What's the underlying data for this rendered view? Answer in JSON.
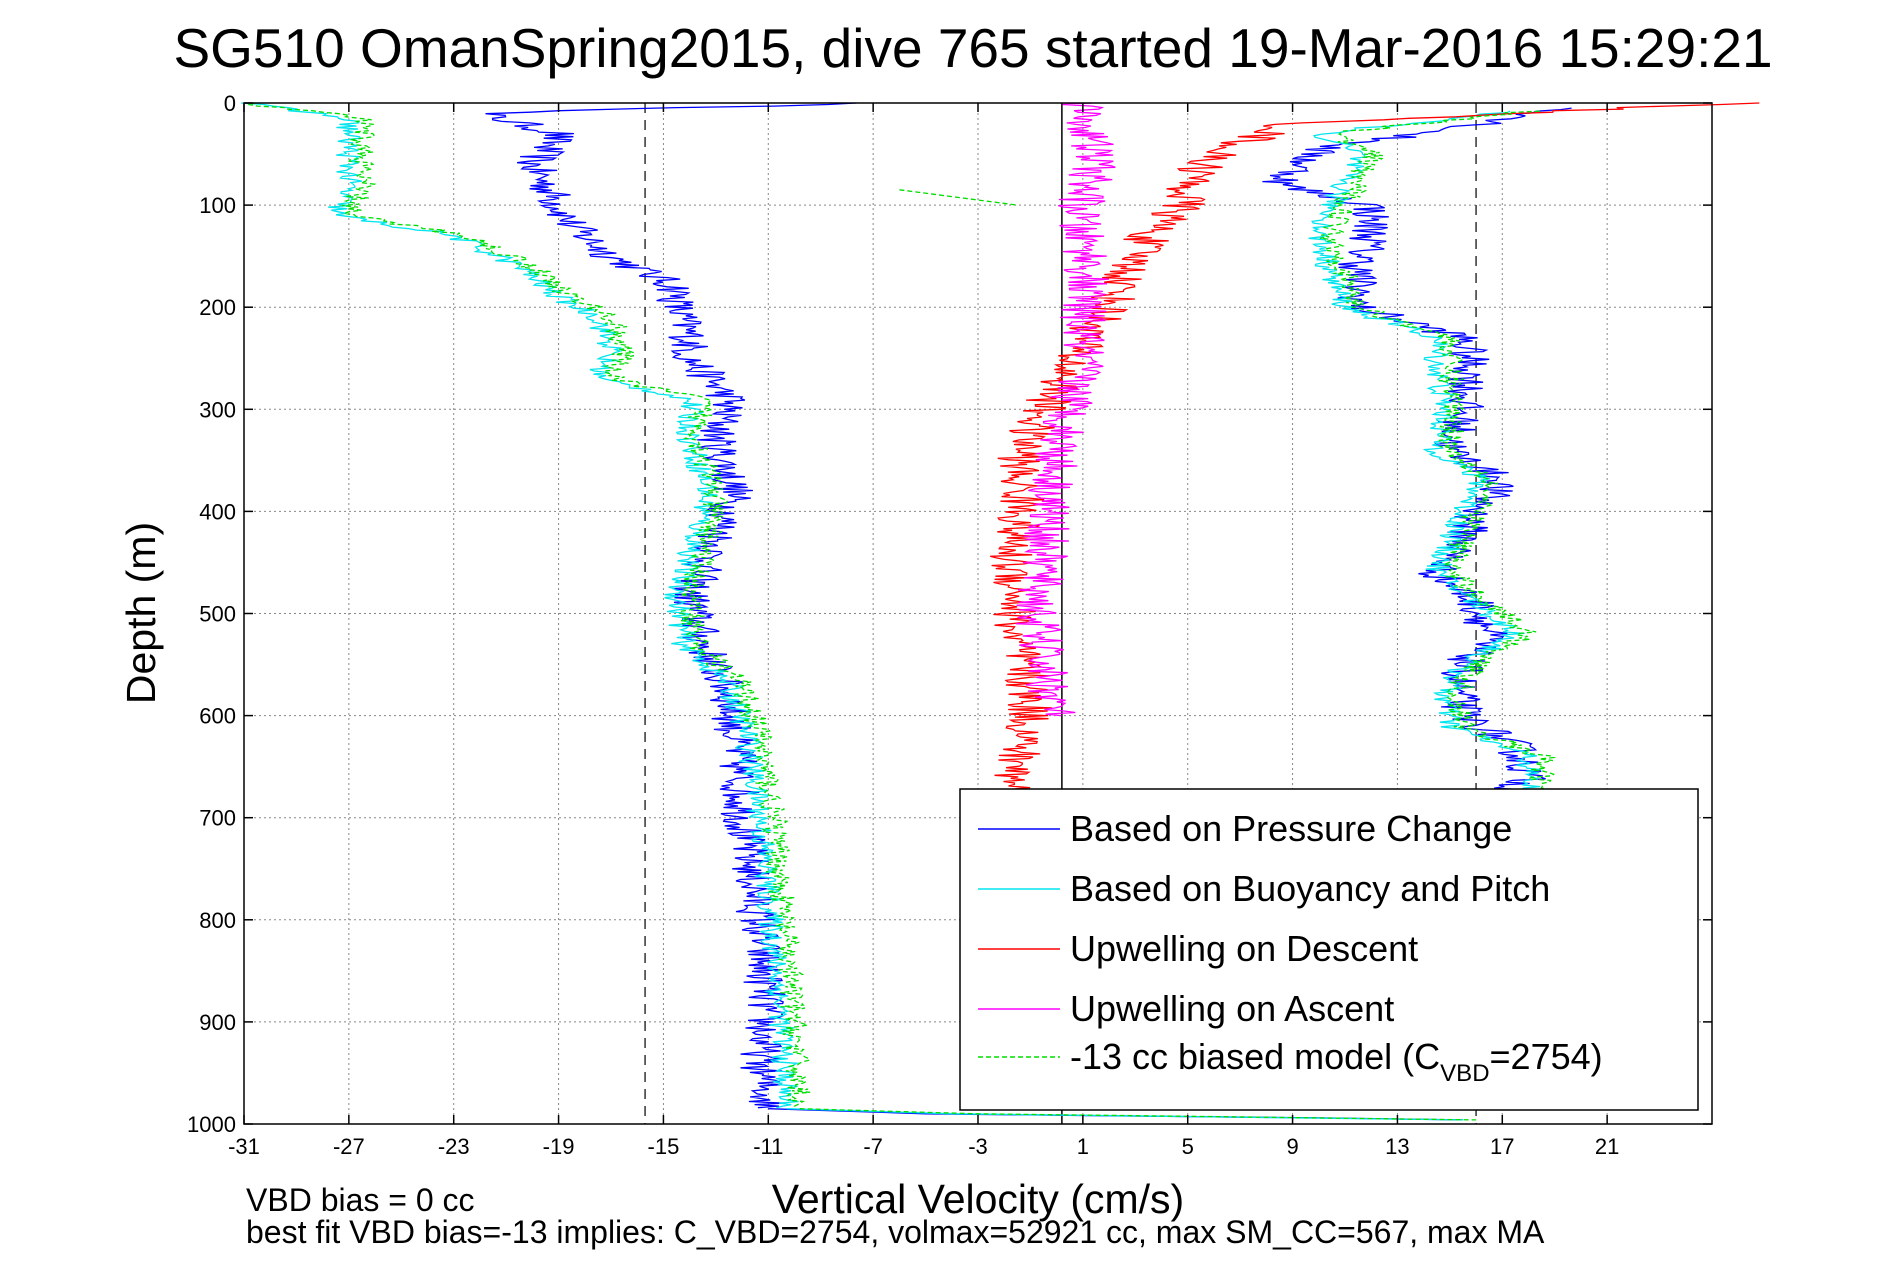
{
  "chart_data": {
    "type": "line",
    "title": "SG510 OmanSpring2015, dive 765 started 19-Mar-2016 15:29:21",
    "xlabel": "Vertical Velocity (cm/s)",
    "ylabel": "Depth (m)",
    "xlim": [
      -31,
      25
    ],
    "ylim": [
      1000,
      0
    ],
    "y_reversed": true,
    "grid": true,
    "grid_style": "dotted",
    "legend_position": "lower-right",
    "x_ticks": [
      "-31",
      "-27",
      "-23",
      "-19",
      "-15",
      "-11",
      "-7",
      "-3",
      "1",
      "5",
      "9",
      "13",
      "17",
      "21"
    ],
    "y_ticks": [
      "0",
      "100",
      "200",
      "300",
      "400",
      "500",
      "600",
      "700",
      "800",
      "900",
      "1000"
    ],
    "reference_lines": [
      {
        "x": -15.7,
        "style": "dashed",
        "color": "#333333"
      },
      {
        "x": 0.2,
        "style": "solid",
        "color": "#000000"
      },
      {
        "x": 16.0,
        "style": "dashed",
        "color": "#333333"
      }
    ],
    "series": [
      {
        "name": "Based on Pressure Change",
        "color": "#0000ff",
        "segments": [
          {
            "depth": [
              0,
              10,
              30,
              60,
              80,
              100,
              120,
              150,
              180,
              200,
              230,
              250,
              290,
              330,
              380,
              430,
              480,
              530,
              580,
              640,
              700,
              760,
              820,
              880,
              940,
              985
            ],
            "velocity": [
              -7,
              -22,
              -19,
              -20,
              -19.5,
              -19,
              -18.5,
              -17,
              -14.5,
              -14.5,
              -14,
              -14,
              -12.5,
              -13,
              -12.3,
              -13,
              -14,
              -13.5,
              -12.5,
              -12.2,
              -12,
              -11.6,
              -11.3,
              -11.1,
              -11.3,
              -11.0
            ],
            "noise": 0.8
          },
          {
            "depth": [
              985,
              990,
              992,
              994,
              996
            ],
            "velocity": [
              -11.0,
              -5,
              2,
              10,
              15.5
            ],
            "noise": 0
          },
          {
            "depth": [
              5,
              20,
              45,
              80,
              100,
              130,
              160,
              200,
              230,
              260,
              300,
              340,
              370,
              400,
              430,
              460,
              490,
              520,
              550,
              575,
              600,
              630,
              660,
              680
            ],
            "velocity": [
              19.5,
              16.5,
              10,
              8.5,
              12,
              12,
              11.5,
              11.5,
              15.5,
              15.8,
              15.5,
              15,
              17,
              16,
              15.5,
              14.5,
              16,
              16.5,
              15.5,
              15.3,
              15.5,
              17.5,
              18,
              17
            ],
            "noise": 0.8
          }
        ]
      },
      {
        "name": "Based on Buoyancy and Pitch",
        "color": "#00e5ee",
        "segments": [
          {
            "depth": [
              0,
              15,
              50,
              80,
              110,
              130,
              160,
              190,
              210,
              240,
              270,
              290,
              330,
              380,
              430,
              480,
              530,
              570,
              620,
              700,
              800,
              900,
              985
            ],
            "velocity": [
              -31,
              -27,
              -27,
              -27,
              -27.5,
              -23,
              -20.5,
              -19,
              -17.5,
              -17,
              -17.5,
              -14,
              -14,
              -13.3,
              -13.8,
              -14.5,
              -14.2,
              -12.5,
              -11.8,
              -11.3,
              -10.9,
              -10.5,
              -10.3
            ],
            "noise": 0.5
          },
          {
            "depth": [
              985,
              990,
              993,
              996
            ],
            "velocity": [
              -10.3,
              -4,
              6,
              15.5
            ],
            "noise": 0
          },
          {
            "depth": [
              8,
              30,
              50,
              100,
              130,
              170,
              200,
              230,
              260,
              300,
              340,
              370,
              400,
              430,
              460,
              490,
              520,
              550,
              580,
              610,
              640,
              680
            ],
            "velocity": [
              17.5,
              10,
              11.5,
              10.5,
              10,
              10.5,
              11,
              14.5,
              14.5,
              14.8,
              14.5,
              16.2,
              15.5,
              15,
              14.5,
              16,
              17.5,
              15.5,
              14.8,
              15,
              18,
              18
            ],
            "noise": 0.5
          }
        ]
      },
      {
        "name": "Upwelling on Descent",
        "color": "#ff0000",
        "segments": [
          {
            "depth": [
              0,
              20,
              50,
              80,
              100,
              130,
              160,
              200,
              240,
              280,
              320,
              360,
              400,
              440,
              480,
              520,
              560,
              600,
              640,
              680
            ],
            "velocity": [
              26,
              9,
              6,
              5,
              4.8,
              3.5,
              2.8,
              2,
              0.8,
              0,
              -1,
              -1.5,
              -1.3,
              -1.8,
              -1.5,
              -1.7,
              -1.2,
              -1,
              -1.5,
              -1.7
            ],
            "noise": 0.9
          }
        ]
      },
      {
        "name": "Upwelling on Ascent",
        "color": "#ff00ff",
        "segments": [
          {
            "depth": [
              0,
              30,
              60,
              90,
              120,
              150,
              200,
              250,
              300,
              350,
              400,
              450,
              500,
              550,
              600
            ],
            "velocity": [
              1,
              1.2,
              1.5,
              1,
              0.8,
              1.2,
              1,
              1,
              0.5,
              0,
              -0.3,
              -0.5,
              -0.8,
              -0.5,
              0
            ],
            "noise": 0.9
          }
        ]
      },
      {
        "name": "-13 cc biased model (C_VBD=2754)",
        "color": "#00dd00",
        "dashed": true,
        "segments": [
          {
            "depth": [
              0,
              15,
              50,
              80,
              110,
              130,
              160,
              190,
              210,
              240,
              270,
              290,
              330,
              380,
              430,
              480,
              530,
              570,
              620,
              700,
              800,
              900,
              985
            ],
            "velocity": [
              -31,
              -26.5,
              -26.5,
              -26.5,
              -27,
              -22.5,
              -20,
              -18.5,
              -17,
              -16.5,
              -17,
              -13.5,
              -13.7,
              -13,
              -13.3,
              -14,
              -13.7,
              -12,
              -11.3,
              -10.8,
              -10.4,
              -10,
              -9.8
            ],
            "noise": 0.5
          },
          {
            "depth": [
              985,
              990,
              993,
              996
            ],
            "velocity": [
              -9.8,
              -3,
              7,
              16
            ],
            "noise": 0
          },
          {
            "depth": [
              8,
              30,
              50,
              100,
              130,
              170,
              200,
              230,
              260,
              300,
              340,
              370,
              400,
              430,
              460,
              490,
              520,
              550,
              580,
              610,
              640,
              680
            ],
            "velocity": [
              18,
              10.5,
              12,
              11,
              10.5,
              11,
              11.5,
              15,
              15,
              15.2,
              15,
              16.6,
              16,
              15.5,
              15,
              16.5,
              18,
              16,
              15.2,
              15.5,
              18.5,
              18.5
            ],
            "noise": 0.5
          },
          {
            "depth": [
              85,
              95,
              100
            ],
            "velocity": [
              -6,
              -3,
              -1.5
            ],
            "noise": 0
          }
        ]
      }
    ],
    "legend_entries": [
      {
        "label": "Based on Pressure Change",
        "color": "#0000ff",
        "dashed": false
      },
      {
        "label": "Based on Buoyancy and Pitch",
        "color": "#00e5ee",
        "dashed": false
      },
      {
        "label": "Upwelling on Descent",
        "color": "#ff0000",
        "dashed": false
      },
      {
        "label": "Upwelling on Ascent",
        "color": "#ff00ff",
        "dashed": false
      },
      {
        "label": "-13 cc biased model (C",
        "sub": "VBD",
        "suffix": "=2754)",
        "color": "#00dd00",
        "dashed": true
      }
    ],
    "annotations": [
      "VBD bias = 0 cc",
      "best fit VBD bias=-13 implies: C_VBD=2754, volmax=52921 cc, max SM_CC=567, max MA"
    ]
  }
}
